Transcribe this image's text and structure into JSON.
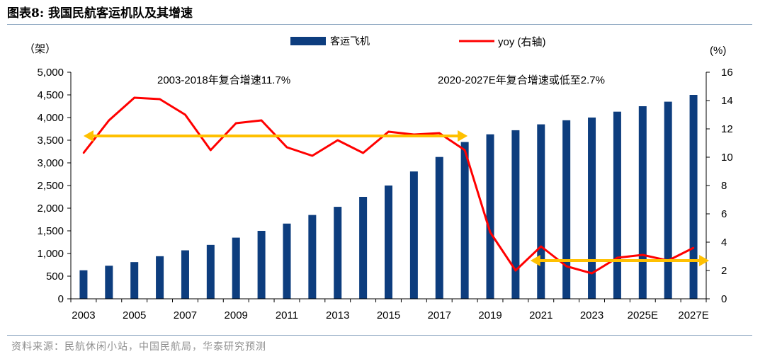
{
  "figure_title": "图表8:   我国民航客运机队及其增速",
  "source": "资料来源：民航休闲小站，中国民航局，华泰研究预测",
  "colors": {
    "bar": "#0d3d7e",
    "line": "#ff0000",
    "arrow": "#ffc000",
    "rule": "#8fa8c2"
  },
  "chart_data": {
    "type": "bar",
    "title": "我国民航客运机队及其增速",
    "categories": [
      "2003",
      "2004",
      "2005",
      "2006",
      "2007",
      "2008",
      "2009",
      "2010",
      "2011",
      "2012",
      "2013",
      "2014",
      "2015",
      "2016",
      "2017",
      "2018",
      "2019",
      "2020",
      "2021",
      "2022",
      "2023",
      "2024",
      "2025E",
      "2026E",
      "2027E"
    ],
    "xtick_labels": [
      "2003",
      "2005",
      "2007",
      "2009",
      "2011",
      "2013",
      "2015",
      "2017",
      "2019",
      "2021",
      "2023",
      "2025E",
      "2027E"
    ],
    "series": [
      {
        "name": "客运飞机",
        "type": "bar",
        "axis": "left",
        "values": [
          630,
          730,
          810,
          940,
          1070,
          1190,
          1350,
          1500,
          1660,
          1850,
          2030,
          2250,
          2500,
          2810,
          3130,
          3460,
          3630,
          3720,
          3850,
          3940,
          4000,
          4130,
          4250,
          4350,
          4500
        ]
      },
      {
        "name": "yoy (右轴)",
        "type": "line",
        "axis": "right",
        "values": [
          10.3,
          12.6,
          14.2,
          14.1,
          13.0,
          10.5,
          12.4,
          12.6,
          10.7,
          10.1,
          11.2,
          10.3,
          11.8,
          11.6,
          11.7,
          10.5,
          4.7,
          2.0,
          3.7,
          2.3,
          1.8,
          2.9,
          3.1,
          2.7,
          3.6
        ]
      }
    ],
    "ylabel_left": "（架）",
    "ylabel_right": "(%)",
    "ylim_left": [
      0,
      5000
    ],
    "ylim_right": [
      0,
      16
    ],
    "yticks_left": [
      "0",
      "500",
      "1,000",
      "1,500",
      "2,000",
      "2,500",
      "3,000",
      "3,500",
      "4,000",
      "4,500",
      "5,000"
    ],
    "yticks_right": [
      "0",
      "2",
      "4",
      "6",
      "8",
      "10",
      "12",
      "14",
      "16"
    ],
    "legend": {
      "position": "top",
      "items": [
        "客运飞机",
        "yoy (右轴)"
      ]
    },
    "annotations": [
      {
        "text": "2003-2018年复合增速11.7%",
        "arrow_from_year": "2003",
        "arrow_to_year": "2018",
        "arrow_value": 11.5
      },
      {
        "text": "2020-2027E年复合增速或低至2.7%",
        "arrow_from_year": "2021",
        "arrow_to_year": "2027E",
        "arrow_value": 2.7
      }
    ],
    "grid": false
  }
}
